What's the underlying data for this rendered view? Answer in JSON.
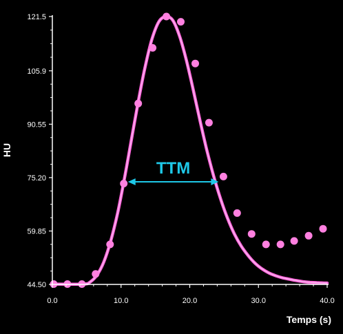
{
  "chart_data": {
    "type": "scatter",
    "xlabel": "Temps (s)",
    "ylabel": "HU",
    "xlim": [
      0,
      40
    ],
    "ylim": [
      44.5,
      121.5
    ],
    "x_ticks": [
      "0.0",
      "10.0",
      "20.0",
      "30.0",
      "40.0"
    ],
    "x_tick_values": [
      0,
      10,
      20,
      30,
      40
    ],
    "y_ticks": [
      "44.50",
      "59.85",
      "75.20",
      "90.55",
      "105.9",
      "121.5"
    ],
    "y_tick_values": [
      44.5,
      59.85,
      75.2,
      90.55,
      105.9,
      121.5
    ],
    "grid": false,
    "series": [
      {
        "kind": "points",
        "color": "#ff80e0",
        "x": [
          0.2,
          2.2,
          4.3,
          6.3,
          8.4,
          10.4,
          12.5,
          14.6,
          16.6,
          18.7,
          20.8,
          22.8,
          24.9,
          26.9,
          29.0,
          31.1,
          33.2,
          35.2,
          37.3,
          39.4
        ],
        "y": [
          44.6,
          44.6,
          44.6,
          47.5,
          56.0,
          73.5,
          96.5,
          112.5,
          121.5,
          120.0,
          108.0,
          91.0,
          75.5,
          65.0,
          59.0,
          56.0,
          56.0,
          57.0,
          58.5,
          60.5
        ]
      },
      {
        "kind": "fit-curve",
        "color": "#ff66dd",
        "x": [
          0,
          4.5,
          5.5,
          6.5,
          7.5,
          8.5,
          9.5,
          10.5,
          11.5,
          12.5,
          13.5,
          14.5,
          15.5,
          16.5,
          17.5,
          18.5,
          19.5,
          20.5,
          21.5,
          22.5,
          23.5,
          24.5,
          25.5,
          26.5,
          27.5,
          28.5,
          29.5,
          30.5,
          31.5,
          32.5,
          33.5,
          34.5,
          35.5,
          36.5,
          37.5,
          38.5,
          39.5,
          40.0
        ],
        "y": [
          44.6,
          44.6,
          45.2,
          47.2,
          51.0,
          57.0,
          65.0,
          75.0,
          86.0,
          97.0,
          107.0,
          115.0,
          120.0,
          121.5,
          120.5,
          116.0,
          109.0,
          100.5,
          91.5,
          83.0,
          75.5,
          69.0,
          63.5,
          59.0,
          55.5,
          52.8,
          50.6,
          49.0,
          47.8,
          47.0,
          46.4,
          46.0,
          45.6,
          45.3,
          45.1,
          45.0,
          44.9,
          44.9
        ]
      }
    ],
    "annotation": {
      "label": "TTM",
      "color": "#1ec8e8",
      "x_start": 11.0,
      "x_end": 24.2,
      "y": 74.0
    }
  }
}
